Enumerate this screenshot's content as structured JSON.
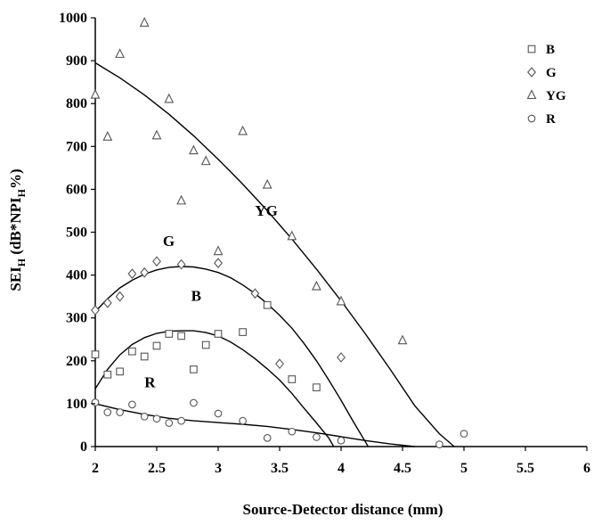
{
  "chart_data": {
    "type": "scatter",
    "xlabel": "Source-Detector distance (mm)",
    "ylabel": {
      "prefix": "SEI",
      "sub1": "H",
      "mid": " (dB*NPI",
      "sub2": "H",
      "suffix": "%)"
    },
    "xlim": [
      2,
      6
    ],
    "ylim": [
      0,
      1000
    ],
    "x_ticks": [
      "2",
      "2.5",
      "3",
      "3.5",
      "4",
      "4.5",
      "5",
      "5.5",
      "6"
    ],
    "y_ticks": [
      "0",
      "100",
      "200",
      "300",
      "400",
      "500",
      "600",
      "700",
      "800",
      "900",
      "1000"
    ],
    "legend_position": "top-right",
    "grid": false,
    "series": [
      {
        "name": "B",
        "marker": "square",
        "points": [
          [
            2.0,
            215
          ],
          [
            2.1,
            168
          ],
          [
            2.2,
            175
          ],
          [
            2.3,
            222
          ],
          [
            2.4,
            210
          ],
          [
            2.5,
            235
          ],
          [
            2.6,
            263
          ],
          [
            2.7,
            258
          ],
          [
            2.8,
            180
          ],
          [
            2.9,
            237
          ],
          [
            3.0,
            263
          ],
          [
            3.2,
            267
          ],
          [
            3.4,
            330
          ],
          [
            3.6,
            157
          ],
          [
            3.8,
            138
          ]
        ],
        "fit": [
          [
            2.0,
            135
          ],
          [
            2.1,
            180
          ],
          [
            2.2,
            214
          ],
          [
            2.3,
            238
          ],
          [
            2.4,
            254
          ],
          [
            2.5,
            264
          ],
          [
            2.6,
            269
          ],
          [
            2.7,
            270
          ],
          [
            2.8,
            270
          ],
          [
            2.9,
            266
          ],
          [
            3.0,
            258
          ],
          [
            3.1,
            244
          ],
          [
            3.2,
            226
          ],
          [
            3.3,
            205
          ],
          [
            3.4,
            181
          ],
          [
            3.5,
            155
          ],
          [
            3.6,
            124
          ],
          [
            3.7,
            89
          ],
          [
            3.8,
            55
          ],
          [
            3.9,
            20
          ],
          [
            3.94,
            0
          ]
        ],
        "curve_label": "B",
        "curve_label_at": [
          2.78,
          340
        ]
      },
      {
        "name": "G",
        "marker": "diamond",
        "points": [
          [
            2.0,
            318
          ],
          [
            2.1,
            335
          ],
          [
            2.2,
            350
          ],
          [
            2.3,
            403
          ],
          [
            2.4,
            406
          ],
          [
            2.5,
            432
          ],
          [
            2.7,
            425
          ],
          [
            3.0,
            428
          ],
          [
            3.3,
            357
          ],
          [
            3.5,
            193
          ],
          [
            4.0,
            208
          ]
        ],
        "fit": [
          [
            2.0,
            315
          ],
          [
            2.1,
            345
          ],
          [
            2.2,
            370
          ],
          [
            2.3,
            388
          ],
          [
            2.4,
            402
          ],
          [
            2.5,
            412
          ],
          [
            2.6,
            418
          ],
          [
            2.7,
            420
          ],
          [
            2.8,
            419
          ],
          [
            2.9,
            414
          ],
          [
            3.0,
            406
          ],
          [
            3.1,
            394
          ],
          [
            3.2,
            377
          ],
          [
            3.3,
            357
          ],
          [
            3.4,
            333
          ],
          [
            3.5,
            306
          ],
          [
            3.6,
            276
          ],
          [
            3.7,
            240
          ],
          [
            3.8,
            200
          ],
          [
            3.9,
            155
          ],
          [
            4.0,
            108
          ],
          [
            4.1,
            58
          ],
          [
            4.2,
            10
          ],
          [
            4.22,
            0
          ]
        ],
        "curve_label": "G",
        "curve_label_at": [
          2.55,
          468
        ]
      },
      {
        "name": "YG",
        "marker": "triangle",
        "points": [
          [
            2.0,
            820
          ],
          [
            2.1,
            722
          ],
          [
            2.2,
            915
          ],
          [
            2.4,
            988
          ],
          [
            2.5,
            725
          ],
          [
            2.6,
            810
          ],
          [
            2.7,
            573
          ],
          [
            2.8,
            690
          ],
          [
            2.9,
            665
          ],
          [
            3.0,
            455
          ],
          [
            3.2,
            735
          ],
          [
            3.4,
            610
          ],
          [
            3.6,
            490
          ],
          [
            3.8,
            373
          ],
          [
            4.0,
            338
          ],
          [
            4.5,
            247
          ]
        ],
        "fit": [
          [
            2.0,
            895
          ],
          [
            2.2,
            860
          ],
          [
            2.4,
            820
          ],
          [
            2.6,
            775
          ],
          [
            2.8,
            725
          ],
          [
            3.0,
            670
          ],
          [
            3.2,
            612
          ],
          [
            3.4,
            550
          ],
          [
            3.6,
            484
          ],
          [
            3.8,
            414
          ],
          [
            4.0,
            340
          ],
          [
            4.2,
            262
          ],
          [
            4.4,
            180
          ],
          [
            4.6,
            95
          ],
          [
            4.8,
            30
          ],
          [
            4.92,
            0
          ]
        ],
        "curve_label": "YG",
        "curve_label_at": [
          3.3,
          538
        ]
      },
      {
        "name": "R",
        "marker": "circle",
        "points": [
          [
            2.0,
            103
          ],
          [
            2.1,
            80
          ],
          [
            2.2,
            80
          ],
          [
            2.3,
            98
          ],
          [
            2.4,
            70
          ],
          [
            2.5,
            65
          ],
          [
            2.6,
            55
          ],
          [
            2.7,
            60
          ],
          [
            2.8,
            102
          ],
          [
            3.0,
            77
          ],
          [
            3.2,
            60
          ],
          [
            3.4,
            20
          ],
          [
            3.6,
            35
          ],
          [
            3.8,
            22
          ],
          [
            4.0,
            14
          ],
          [
            4.8,
            5
          ],
          [
            5.0,
            30
          ]
        ],
        "fit": [
          [
            2.0,
            100
          ],
          [
            2.2,
            86
          ],
          [
            2.4,
            75
          ],
          [
            2.6,
            66
          ],
          [
            2.8,
            60
          ],
          [
            3.0,
            56
          ],
          [
            3.2,
            52
          ],
          [
            3.4,
            47
          ],
          [
            3.6,
            40
          ],
          [
            3.8,
            32
          ],
          [
            4.0,
            23
          ],
          [
            4.2,
            14
          ],
          [
            4.4,
            6
          ],
          [
            4.6,
            0
          ]
        ],
        "curve_label": "R",
        "curve_label_at": [
          2.4,
          138
        ]
      }
    ]
  }
}
